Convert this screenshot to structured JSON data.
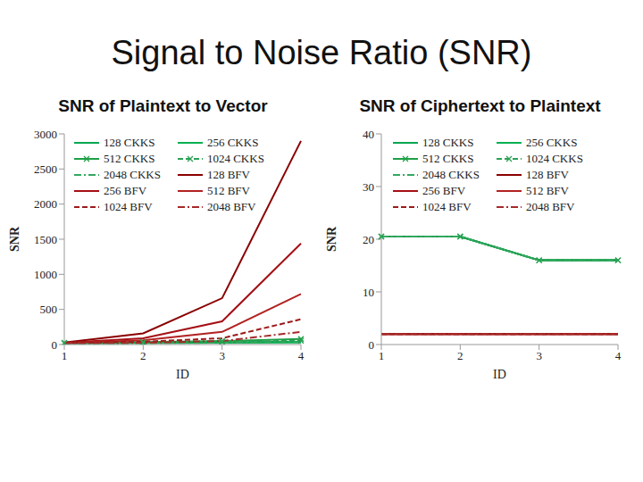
{
  "title": "Signal to Noise Ratio (SNR)",
  "chart_data": [
    {
      "type": "line",
      "title": "SNR of Plaintext to Vector",
      "xlabel": "ID",
      "ylabel": "SNR",
      "categories": [
        "1",
        "2",
        "3",
        "4"
      ],
      "ylim": [
        0,
        3000
      ],
      "yticks": [
        0,
        500,
        1000,
        1500,
        2000,
        2500,
        3000
      ],
      "grid": false,
      "legend": "top",
      "series": [
        {
          "name": "128 CKKS",
          "color": "#00a650",
          "line_style": "solid",
          "marker": "none",
          "values": [
            20,
            25,
            30,
            40
          ]
        },
        {
          "name": "256 CKKS",
          "color": "#00b050",
          "line_style": "solid",
          "marker": "none",
          "values": [
            20,
            22,
            25,
            30
          ]
        },
        {
          "name": "512 CKKS",
          "color": "#1e9e46",
          "line_style": "solid",
          "marker": "x",
          "values": [
            25,
            35,
            50,
            80
          ]
        },
        {
          "name": "1024 CKKS",
          "color": "#2aa055",
          "line_style": "dashed",
          "marker": "x",
          "values": [
            20,
            25,
            35,
            55
          ]
        },
        {
          "name": "2048 CKKS",
          "color": "#33a860",
          "line_style": "dashdot",
          "marker": "none",
          "values": [
            15,
            20,
            25,
            35
          ]
        },
        {
          "name": "128 BFV",
          "color": "#8b0000",
          "line_style": "solid",
          "marker": "none",
          "values": [
            30,
            160,
            660,
            2900
          ]
        },
        {
          "name": "256 BFV",
          "color": "#a50f15",
          "line_style": "solid",
          "marker": "none",
          "values": [
            25,
            90,
            330,
            1440
          ]
        },
        {
          "name": "512 BFV",
          "color": "#b22222",
          "line_style": "solid",
          "marker": "none",
          "values": [
            22,
            60,
            180,
            720
          ]
        },
        {
          "name": "1024 BFV",
          "color": "#9b1b1b",
          "line_style": "dashed",
          "marker": "none",
          "values": [
            20,
            40,
            90,
            360
          ]
        },
        {
          "name": "2048 BFV",
          "color": "#a52a2a",
          "line_style": "dashdot",
          "marker": "none",
          "values": [
            18,
            25,
            50,
            180
          ]
        }
      ]
    },
    {
      "type": "line",
      "title": "SNR of Ciphertext to Plaintext",
      "xlabel": "ID",
      "ylabel": "SNR",
      "categories": [
        "1",
        "2",
        "3",
        "4"
      ],
      "ylim": [
        0,
        40
      ],
      "yticks": [
        0,
        10,
        20,
        30,
        40
      ],
      "grid": false,
      "legend": "top",
      "series": [
        {
          "name": "128 CKKS",
          "color": "#00a650",
          "line_style": "solid",
          "marker": "none",
          "values": [
            20.5,
            20.5,
            16,
            16
          ]
        },
        {
          "name": "256 CKKS",
          "color": "#00b050",
          "line_style": "solid",
          "marker": "none",
          "values": [
            20.5,
            20.5,
            16,
            16
          ]
        },
        {
          "name": "512 CKKS",
          "color": "#1e9e46",
          "line_style": "solid",
          "marker": "x",
          "values": [
            20.5,
            20.5,
            16,
            16
          ]
        },
        {
          "name": "1024 CKKS",
          "color": "#2aa055",
          "line_style": "dashed",
          "marker": "x",
          "values": [
            20.5,
            20.5,
            16,
            16
          ]
        },
        {
          "name": "2048 CKKS",
          "color": "#33a860",
          "line_style": "dashdot",
          "marker": "none",
          "values": [
            20.5,
            20.5,
            16,
            16
          ]
        },
        {
          "name": "128 BFV",
          "color": "#8b0000",
          "line_style": "solid",
          "marker": "none",
          "values": [
            2,
            2,
            2,
            2
          ]
        },
        {
          "name": "256 BFV",
          "color": "#a50f15",
          "line_style": "solid",
          "marker": "none",
          "values": [
            2,
            2,
            2,
            2
          ]
        },
        {
          "name": "512 BFV",
          "color": "#b22222",
          "line_style": "solid",
          "marker": "none",
          "values": [
            2,
            2,
            2,
            2
          ]
        },
        {
          "name": "1024 BFV",
          "color": "#9b1b1b",
          "line_style": "dashed",
          "marker": "none",
          "values": [
            2,
            2,
            2,
            2
          ]
        },
        {
          "name": "2048 BFV",
          "color": "#a52a2a",
          "line_style": "dashdot",
          "marker": "none",
          "values": [
            2,
            2,
            2,
            2
          ]
        }
      ]
    }
  ]
}
